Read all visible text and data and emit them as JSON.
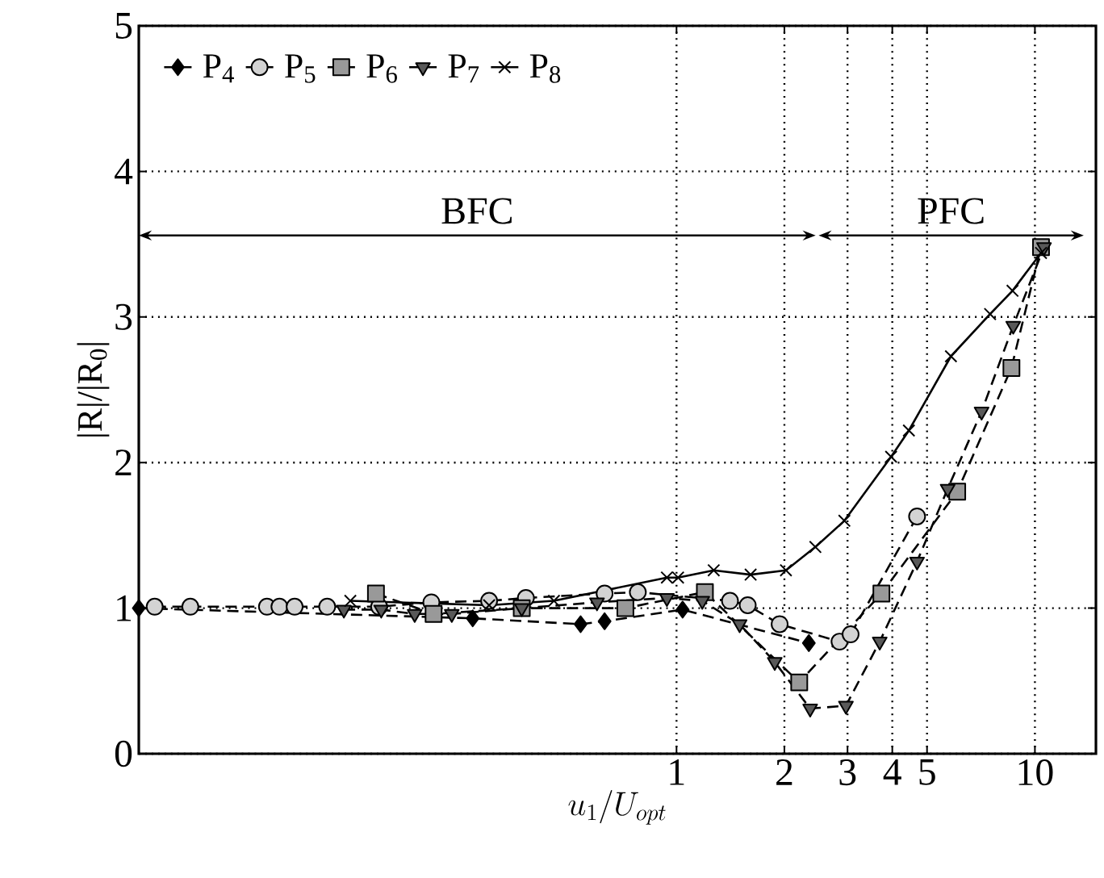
{
  "chart_data": {
    "type": "line",
    "xlabel": "u_1/U_{opt}",
    "ylabel": "|R|/|R$_{0}$|",
    "log": "x",
    "xlim": [
      0.0316,
      14.8
    ],
    "ylim": [
      0,
      5
    ],
    "xticks": [
      1,
      2,
      3,
      4,
      5,
      10
    ],
    "yticks": [
      0,
      1,
      2,
      3,
      4,
      5
    ],
    "grid": true,
    "legend": "top left",
    "annotations": [
      "BFC",
      "PFC"
    ],
    "series": [
      {
        "name": "P$_{4}$",
        "color": "#000000",
        "marker": "diamond",
        "line_style": "dashed",
        "x": [
          0.0316,
          0.27,
          0.54,
          0.63,
          1.04,
          2.34
        ],
        "values": [
          1.0,
          0.93,
          0.89,
          0.91,
          0.99,
          0.76
        ]
      },
      {
        "name": "P$_{5}$",
        "color": "#d3d3d3",
        "marker": "circle",
        "line_style": "dashed",
        "x": [
          0.035,
          0.044,
          0.072,
          0.078,
          0.086,
          0.106,
          0.148,
          0.207,
          0.3,
          0.38,
          0.63,
          0.78,
          1.41,
          1.58,
          1.94,
          2.85,
          3.06,
          4.69
        ],
        "values": [
          1.01,
          1.01,
          1.01,
          1.01,
          1.01,
          1.01,
          1.01,
          1.04,
          1.05,
          1.07,
          1.1,
          1.11,
          1.05,
          1.02,
          0.89,
          0.77,
          0.82,
          1.63
        ]
      },
      {
        "name": "P$_{6}$",
        "color": "#999999",
        "marker": "square",
        "line_style": "dashed",
        "x": [
          0.145,
          0.21,
          0.37,
          0.72,
          1.2,
          2.2,
          3.73,
          6.07,
          8.6,
          10.4
        ],
        "values": [
          1.1,
          0.96,
          1.0,
          1.0,
          1.11,
          0.49,
          1.1,
          1.8,
          2.65,
          3.48
        ]
      },
      {
        "name": "P$_{7}$",
        "color": "#595959",
        "marker": "triangle",
        "line_style": "dashed",
        "x": [
          0.118,
          0.15,
          0.186,
          0.236,
          0.37,
          0.6,
          0.94,
          1.18,
          1.5,
          1.88,
          2.36,
          2.97,
          3.69,
          4.69,
          5.71,
          7.1,
          8.7,
          10.6
        ],
        "values": [
          0.99,
          0.99,
          0.96,
          0.96,
          1.0,
          1.04,
          1.07,
          1.05,
          0.89,
          0.63,
          0.31,
          0.33,
          0.77,
          1.32,
          1.82,
          2.35,
          2.94,
          3.48
        ]
      },
      {
        "name": "P$_{8}$",
        "color": "#000000",
        "marker": "cross",
        "line_style": "solid",
        "x": [
          0.123,
          0.3,
          0.455,
          0.94,
          1.01,
          1.27,
          1.61,
          2.02,
          2.44,
          2.94,
          3.97,
          4.45,
          5.83,
          7.5,
          8.66,
          10.4
        ],
        "values": [
          1.05,
          1.02,
          1.05,
          1.21,
          1.21,
          1.26,
          1.23,
          1.26,
          1.42,
          1.6,
          2.04,
          2.22,
          2.73,
          3.02,
          3.18,
          3.44
        ]
      }
    ]
  }
}
